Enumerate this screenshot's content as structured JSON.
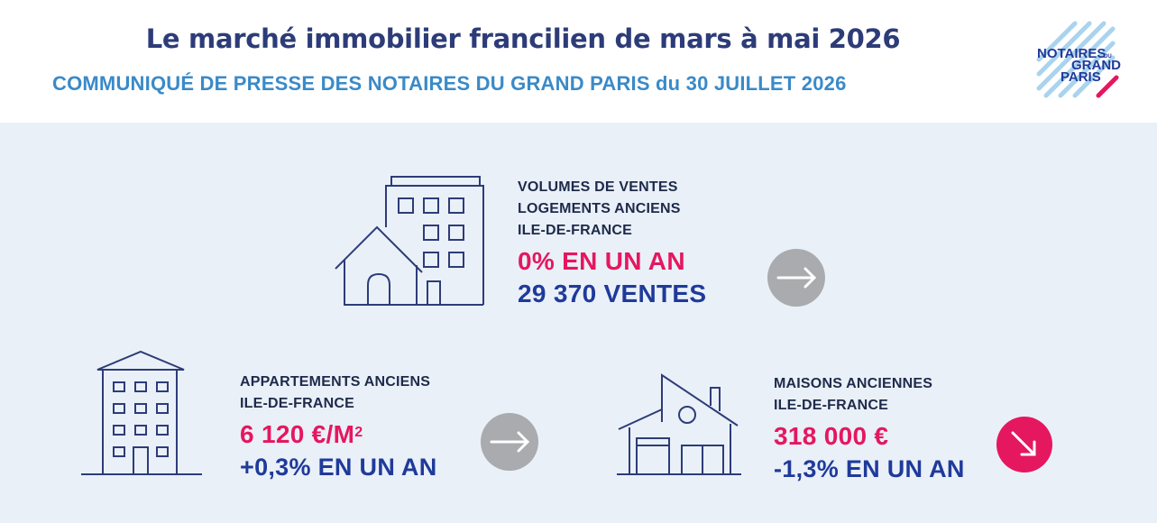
{
  "header": {
    "title": "Le marché immobilier francilien de mars à mai 2026",
    "subtitle": "COMMUNIQUÉ DE PRESSE DES NOTAIRES DU GRAND PARIS du 30 JUILLET 2026",
    "logo": {
      "line1": "NOTAIRES",
      "line1_small": "DU",
      "line2": "GRAND",
      "line3": "PARIS",
      "colors": {
        "stripes": "#a9d3ee",
        "text": "#1f3a9a",
        "accent": "#e5175f"
      }
    }
  },
  "colors": {
    "panel_bg": "#e9f0f8",
    "icon_stroke": "#2d3c78",
    "pink": "#e5175f",
    "blue": "#1f3a9a",
    "arrow_gray": "#a9abae"
  },
  "stats": {
    "volumes": {
      "label_line1": "VOLUMES DE VENTES",
      "label_line2": "LOGEMENTS ANCIENS",
      "label_line3": "ILE-DE-FRANCE",
      "change": "0% EN UN AN",
      "count": "29 370 VENTES",
      "trend_icon": "arrow-right-icon"
    },
    "apartments": {
      "label_line1": "APPARTEMENTS ANCIENS",
      "label_line2": "ILE-DE-FRANCE",
      "price": "6 120 €/M",
      "price_sup": "2",
      "change": "+0,3% EN UN AN",
      "trend_icon": "arrow-right-icon"
    },
    "houses": {
      "label_line1": "MAISONS ANCIENNES",
      "label_line2": "ILE-DE-FRANCE",
      "price": "318 000 €",
      "change": "-1,3% EN UN AN",
      "trend_icon": "arrow-down-right-icon"
    }
  }
}
